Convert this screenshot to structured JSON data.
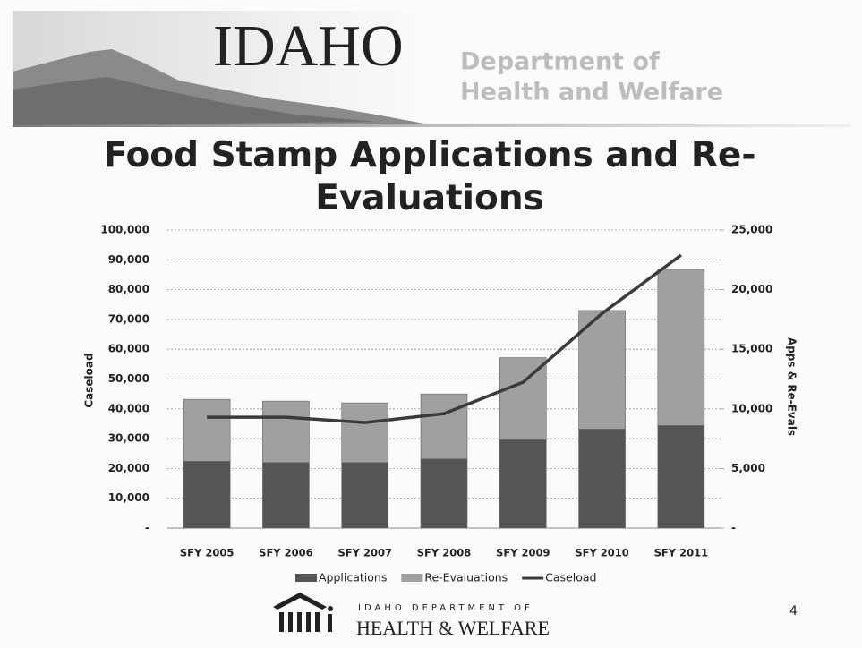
{
  "header": {
    "logo": "IDAHO",
    "department": "Department of",
    "division": "Health and Welfare"
  },
  "chart_data": {
    "type": "bar",
    "stacked": true,
    "title": "Food Stamp Applications and Re-Evaluations",
    "y_label": "Caseload",
    "y2_label": "Apps & Re-Evals",
    "categories": [
      "SFY 2005",
      "SFY 2006",
      "SFY 2007",
      "SFY 2008",
      "SFY 2009",
      "SFY 2010",
      "SFY 2011"
    ],
    "series": [
      {
        "name": "Applications",
        "color": "#555555",
        "axis": "y2",
        "values": [
          5600,
          5500,
          5500,
          5800,
          7400,
          8300,
          8600
        ]
      },
      {
        "name": "Re-Evaluations",
        "color": "#a0a0a0",
        "axis": "y2",
        "values": [
          5200,
          5150,
          5000,
          5450,
          6900,
          9950,
          13100
        ]
      },
      {
        "name": "Caseload",
        "color": "#3a3a3a",
        "type": "line",
        "values": [
          37200,
          37200,
          35400,
          38400,
          48900,
          72000,
          91600
        ]
      }
    ],
    "ylim": [
      0,
      100000
    ],
    "yticks": [
      {
        "value": 0,
        "label": "-"
      },
      {
        "value": 10000,
        "label": "10,000"
      },
      {
        "value": 20000,
        "label": "20,000"
      },
      {
        "value": 30000,
        "label": "30,000"
      },
      {
        "value": 40000,
        "label": "40,000"
      },
      {
        "value": 50000,
        "label": "50,000"
      },
      {
        "value": 60000,
        "label": "60,000"
      },
      {
        "value": 70000,
        "label": "70,000"
      },
      {
        "value": 80000,
        "label": "80,000"
      },
      {
        "value": 90000,
        "label": "90,000"
      },
      {
        "value": 100000,
        "label": "100,000"
      }
    ],
    "y2lim": [
      0,
      25000
    ],
    "y2ticks": [
      {
        "value": 0,
        "label": "-"
      },
      {
        "value": 5000,
        "label": "5,000"
      },
      {
        "value": 10000,
        "label": "10,000"
      },
      {
        "value": 15000,
        "label": "15,000"
      },
      {
        "value": 20000,
        "label": "20,000"
      },
      {
        "value": 25000,
        "label": "25,000"
      }
    ],
    "grid": true,
    "legend": "bottom"
  },
  "footer": {
    "agency_top": "IDAHO DEPARTMENT OF",
    "agency_bottom": "HEALTH & WELFARE",
    "page_number": "4"
  }
}
